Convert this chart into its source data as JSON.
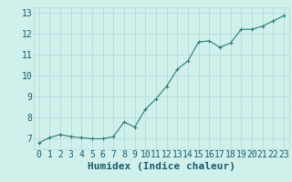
{
  "x": [
    0,
    1,
    2,
    3,
    4,
    5,
    6,
    7,
    8,
    9,
    10,
    11,
    12,
    13,
    14,
    15,
    16,
    17,
    18,
    19,
    20,
    21,
    22,
    23
  ],
  "y": [
    6.8,
    7.05,
    7.2,
    7.1,
    7.05,
    7.0,
    7.0,
    7.1,
    7.8,
    7.55,
    8.4,
    8.9,
    9.5,
    10.3,
    10.7,
    11.6,
    11.65,
    11.35,
    11.55,
    12.2,
    12.2,
    12.35,
    12.6,
    12.85
  ],
  "xlabel": "Humidex (Indice chaleur)",
  "ylim": [
    6.5,
    13.25
  ],
  "xlim": [
    -0.5,
    23.5
  ],
  "yticks": [
    7,
    8,
    9,
    10,
    11,
    12,
    13
  ],
  "xticks": [
    0,
    1,
    2,
    3,
    4,
    5,
    6,
    7,
    8,
    9,
    10,
    11,
    12,
    13,
    14,
    15,
    16,
    17,
    18,
    19,
    20,
    21,
    22,
    23
  ],
  "line_color": "#2d7d6e",
  "marker_color": "#2d7d6e",
  "bg_color": "#d0f0ec",
  "grid_color": "#b0d8d4",
  "tick_label_color": "#1a5c6e",
  "xlabel_color": "#1a5c6e",
  "tick_fontsize": 7,
  "xlabel_fontsize": 8
}
